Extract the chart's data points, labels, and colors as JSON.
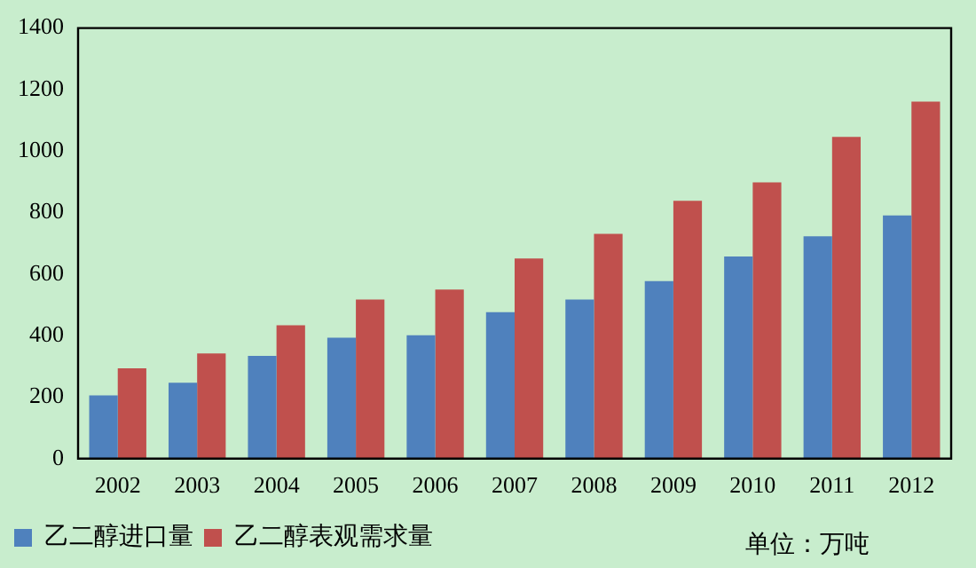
{
  "chart_data": {
    "type": "bar",
    "categories": [
      "2002",
      "2003",
      "2004",
      "2005",
      "2006",
      "2007",
      "2008",
      "2009",
      "2010",
      "2011",
      "2012"
    ],
    "series": [
      {
        "name": "乙二醇进口量",
        "color": "#4f81bd",
        "values": [
          206,
          247,
          334,
          393,
          401,
          476,
          517,
          577,
          657,
          723,
          791
        ]
      },
      {
        "name": "乙二醇表观需求量",
        "color": "#c0504d",
        "values": [
          294,
          342,
          434,
          517,
          550,
          651,
          731,
          838,
          898,
          1046,
          1161
        ]
      }
    ],
    "ylim": [
      0,
      1400
    ],
    "yticks": [
      0,
      200,
      400,
      600,
      800,
      1000,
      1200,
      1400
    ],
    "grid": false,
    "legend": "bottom",
    "annotations": [
      "单位：万吨"
    ]
  }
}
